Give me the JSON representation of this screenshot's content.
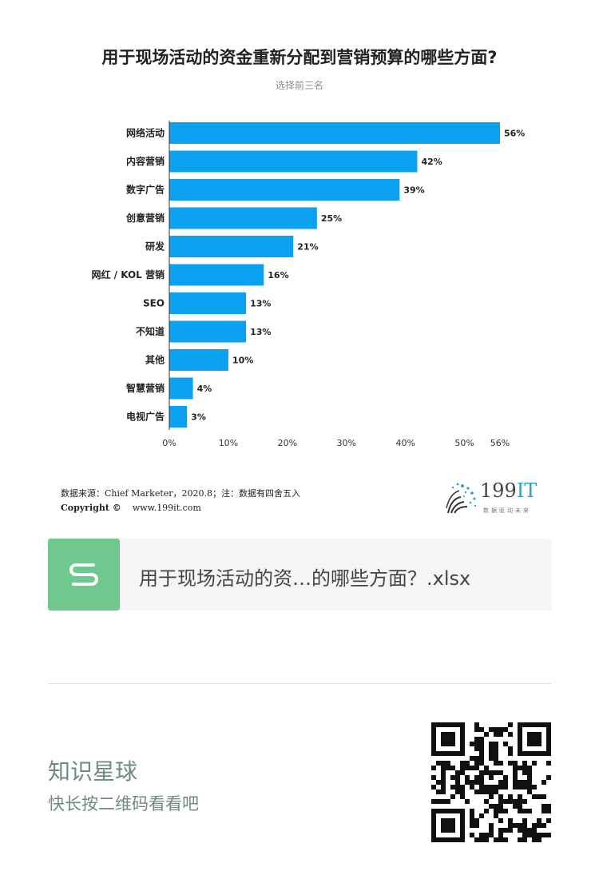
{
  "title": "用于现场活动的资金重新分配到营销预算的哪些方面?",
  "subtitle": "选择前三名",
  "chart_data": {
    "type": "bar",
    "orientation": "horizontal",
    "title": "用于现场活动的资金重新分配到营销预算的哪些方面?",
    "subtitle": "选择前三名",
    "categories": [
      "网络活动",
      "内容营销",
      "数字广告",
      "创意营销",
      "研发",
      "网红 / KOL 营销",
      "SEO",
      "不知道",
      "其他",
      "智慧营销",
      "电视广告"
    ],
    "values": [
      56,
      42,
      39,
      25,
      21,
      16,
      13,
      13,
      10,
      4,
      3
    ],
    "value_labels": [
      "56%",
      "42%",
      "39%",
      "25%",
      "21%",
      "16%",
      "13%",
      "13%",
      "10%",
      "4%",
      "3%"
    ],
    "x_ticks": [
      0,
      10,
      20,
      30,
      40,
      50,
      56
    ],
    "x_tick_labels": [
      "0%",
      "10%",
      "20%",
      "30%",
      "40%",
      "50%",
      "56%"
    ],
    "xlim": [
      0,
      56
    ],
    "bar_color": "#0aa2f0",
    "grid": false
  },
  "source": "数据来源：Chief Marketer，2020.8；注：数据有四舍五入",
  "copyright": {
    "label": "Copyright ©",
    "url": "www.199it.com"
  },
  "logo": {
    "number": "199",
    "letters": "IT",
    "slogan": "数据驱动未来"
  },
  "file_card": {
    "icon": "spreadsheet-s-icon",
    "icon_color": "#6fc98e",
    "filename": "用于现场活动的资…的哪些方面？.xlsx"
  },
  "planet": {
    "title": "知识星球",
    "subtitle": "快长按二维码看看吧"
  },
  "qr_icon": "qr-code-icon"
}
